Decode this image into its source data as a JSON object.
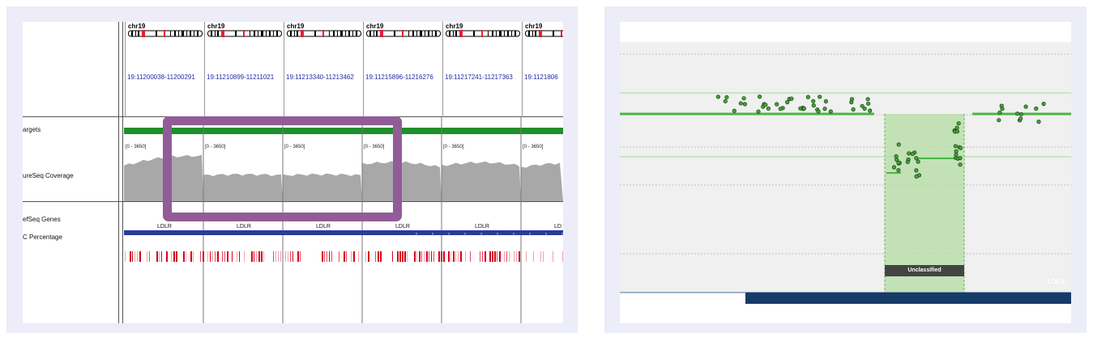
{
  "igv": {
    "tracks": {
      "targets": "argets",
      "coverage": "ureSeq Coverage",
      "refseq": "efSeq Genes",
      "gc": "C Percentage"
    },
    "loci": [
      {
        "chr": "chr19",
        "range": "19:11200038-11200291",
        "cov_range": "[0 - 3650]",
        "gene": "LDLR"
      },
      {
        "chr": "chr19",
        "range": "19:11210899-11211021",
        "cov_range": "[0 - 3650]",
        "gene": "LDLR"
      },
      {
        "chr": "chr19",
        "range": "19:11213340-11213462",
        "cov_range": "[0 - 3650]",
        "gene": "LDLR"
      },
      {
        "chr": "chr19",
        "range": "19:11215896-11216276",
        "cov_range": "[0 - 3650]",
        "gene": "LDLR"
      },
      {
        "chr": "chr19",
        "range": "19:11217241-11217363",
        "cov_range": "[0 - 3650]",
        "gene": "LDLR"
      },
      {
        "chr": "chr19",
        "range": "19:1121806",
        "cov_range": "[0 - 3650]",
        "gene": "LD"
      }
    ],
    "colors": {
      "coverage": "#a8a8a8",
      "target": "#1f8f2a",
      "gene": "#2a3a9a",
      "gc": "#e0213b",
      "highlight": "#915c97"
    }
  },
  "scatter": {
    "region_label": "Unclassified",
    "gene_label": "LDLR",
    "colors": {
      "points": "#4aa23c",
      "segments": "#4bb544",
      "region": "#b6dfa7",
      "gene_bar": "#163b66"
    }
  }
}
